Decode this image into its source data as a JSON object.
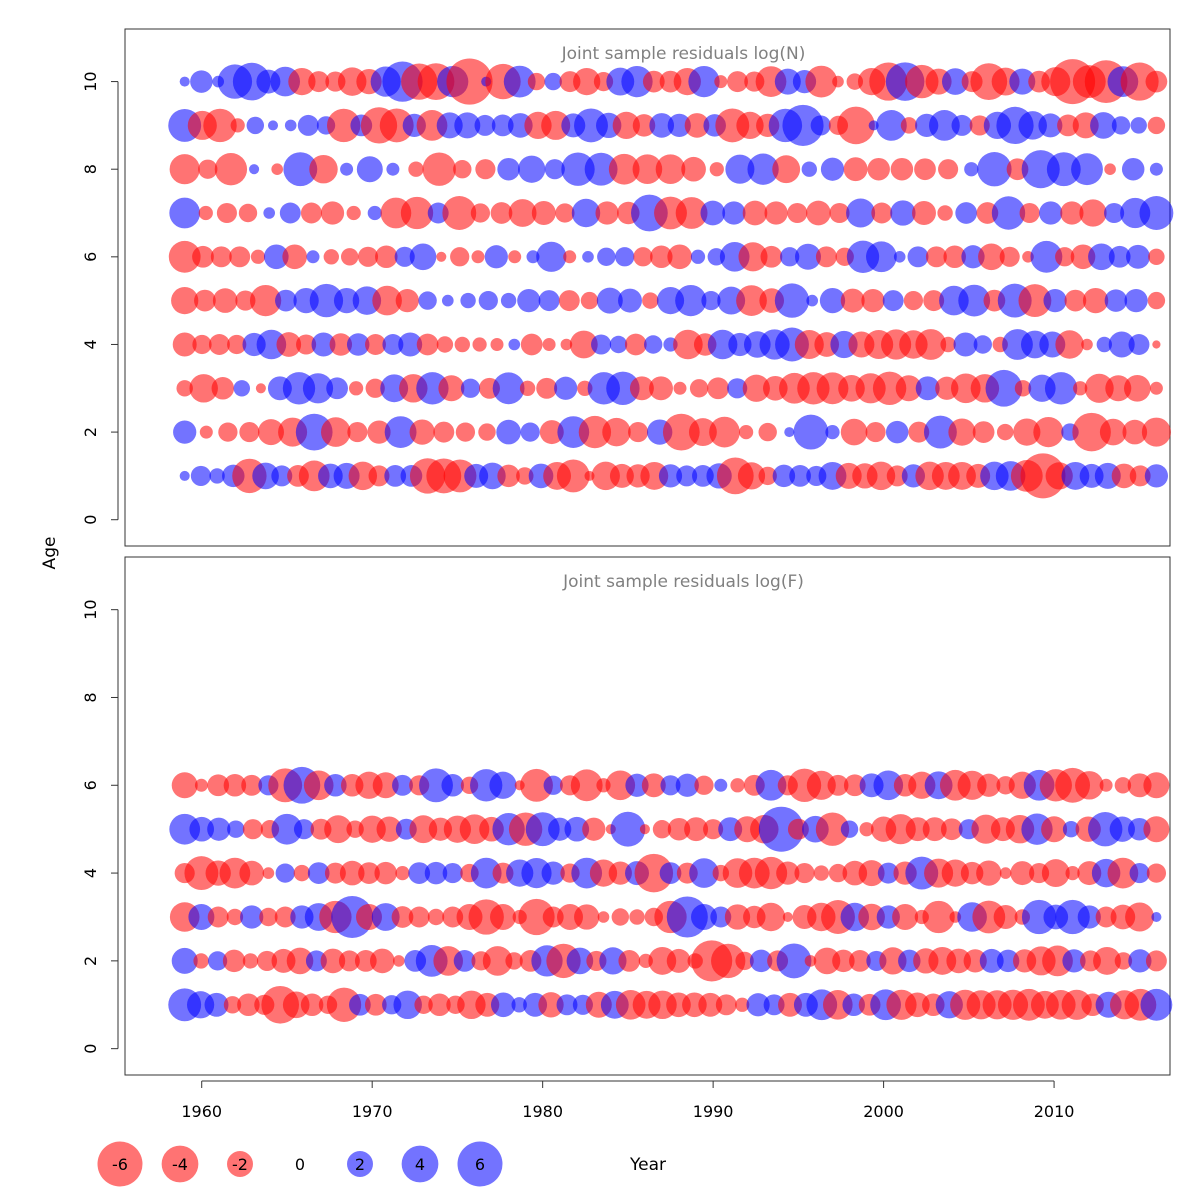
{
  "chart_data": {
    "type": "scatter",
    "encoding": "bubble",
    "xlabel": "Year",
    "ylabel": "Age",
    "xlim": [
      1955.5,
      2016.8
    ],
    "x_ticks": [
      1960,
      1970,
      1980,
      1990,
      2000,
      2010
    ],
    "ylim": [
      -0.6,
      11.2
    ],
    "y_ticks": [
      0,
      2,
      4,
      6,
      8,
      10
    ],
    "grid": false,
    "colors": {
      "positive": "#0000ff",
      "negative": "#ff0000",
      "alpha": 0.55
    },
    "legend": {
      "placement": "bottom-left",
      "entries": [
        {
          "label": "-6",
          "value": -6
        },
        {
          "label": "-4",
          "value": -4
        },
        {
          "label": "-2",
          "value": -2
        },
        {
          "label": "0",
          "value": 0
        },
        {
          "label": "2",
          "value": 2
        },
        {
          "label": "4",
          "value": 4
        },
        {
          "label": "6",
          "value": 6
        }
      ]
    },
    "panels": [
      {
        "title": "Joint sample residuals log(N)",
        "years": [
          1959,
          2016
        ],
        "ages": [
          1,
          10
        ],
        "residuals": {
          "10": [
            0.3,
            1.5,
            0.4,
            3.5,
            4.2,
            1.7,
            2.6,
            -2.2,
            -1.3,
            -1.2,
            -2.4,
            -1.9,
            2.7,
            4.8,
            -3.9,
            -4.0,
            2.9,
            -6.3,
            0.3,
            -3.7,
            3.0,
            -0.9,
            0.9,
            -1.3,
            -2.2,
            -1.1,
            2.3,
            2.9,
            -1.4,
            -1.4,
            -2.2,
            2.9,
            -0.5,
            -1.3,
            -1.2,
            -2.8,
            2.0,
            1.6,
            -3.0,
            -0.4,
            -0.8,
            -2.2,
            -4.3,
            4.4,
            -3.3,
            -2.0,
            2.1,
            -1.3,
            -4.0,
            -2.3,
            2.0,
            -1.4,
            -2.5,
            -6.0,
            -3.2,
            -5.4,
            2.8,
            -4.3,
            -1.4
          ],
          "9": [
            3.2,
            -2.5,
            -3.3,
            -0.6,
            0.9,
            0.3,
            0.4,
            1.3,
            1.0,
            -3.3,
            1.4,
            -3.9,
            -3.4,
            1.6,
            -2.8,
            2.0,
            2.0,
            1.3,
            1.4,
            1.8,
            -2.2,
            -2.5,
            1.7,
            3.4,
            1.9,
            -2.2,
            -1.5,
            1.8,
            1.6,
            -1.8,
            1.5,
            -3.4,
            -2.2,
            -1.6,
            3.3,
            5.0,
            1.2,
            -1.1,
            -4.2,
            0.3,
            2.8,
            -0.8,
            1.6,
            2.8,
            1.3,
            -1.2,
            2.2,
            4.1,
            2.4,
            1.7,
            -1.4,
            -2.0,
            2.1,
            1.0,
            0.8,
            -0.9
          ],
          "8": [
            -2.7,
            -1.1,
            -3.1,
            0.3,
            -0.4,
            3.4,
            -2.4,
            0.5,
            2.0,
            0.5,
            -0.7,
            -3.3,
            -1.0,
            -1.2,
            1.5,
            2.2,
            1.2,
            3.3,
            3.2,
            -2.8,
            -2.6,
            -2.6,
            -1.8,
            -0.6,
            2.5,
            2.9,
            -2.3,
            0.7,
            1.6,
            -1.7,
            -1.5,
            -1.5,
            -1.4,
            -1.2,
            0.6,
            3.5,
            -1.4,
            4.3,
            3.4,
            3.0,
            -0.4,
            1.5,
            0.5
          ],
          "7": [
            2.8,
            -0.6,
            -1.2,
            -1.0,
            0.4,
            1.3,
            -1.3,
            -1.6,
            -0.6,
            0.6,
            -2.8,
            -3.1,
            1.3,
            -3.4,
            -1.1,
            -1.4,
            -2.3,
            -1.7,
            -1.1,
            2.4,
            -1.6,
            -1.5,
            4.0,
            -3.2,
            -3.0,
            1.8,
            1.6,
            -1.8,
            -1.6,
            -1.2,
            -1.8,
            -1.2,
            2.5,
            -1.3,
            1.9,
            -1.7,
            -0.7,
            1.4,
            -1.4,
            3.3,
            -1.2,
            1.6,
            -1.6,
            -2.2,
            1.2,
            2.7,
            3.4
          ],
          "6": [
            -3.0,
            -1.4,
            -1.3,
            -1.3,
            -0.6,
            1.8,
            -1.8,
            0.5,
            -0.7,
            -0.9,
            -1.2,
            -1.5,
            1.2,
            2.1,
            -0.3,
            -1.1,
            -0.5,
            1.6,
            -0.5,
            0.5,
            2.7,
            -0.5,
            0.4,
            1.0,
            1.1,
            -1.1,
            -1.5,
            -1.8,
            0.6,
            0.9,
            2.6,
            -2.5,
            -1.4,
            1.1,
            2.0,
            -1.3,
            -1.0,
            3.1,
            2.8,
            0.4,
            1.3,
            -1.3,
            -1.5,
            1.6,
            -2.1,
            -1.2,
            -0.4,
            3.0,
            -1.1,
            -1.8,
            2.1,
            1.4,
            1.7,
            -0.8
          ],
          "5": [
            -2.2,
            -1.4,
            -1.8,
            -1.2,
            -2.9,
            1.4,
            1.9,
            3.3,
            1.9,
            2.4,
            -2.6,
            -1.6,
            1.0,
            0.4,
            0.7,
            1.1,
            0.7,
            1.6,
            1.3,
            -1.3,
            -0.9,
            2.0,
            1.7,
            -0.8,
            2.2,
            2.9,
            1.1,
            2.3,
            -2.8,
            -1.8,
            3.5,
            0.4,
            1.9,
            -1.7,
            -1.6,
            1.3,
            -1.1,
            -1.3,
            2.6,
            3.0,
            -1.4,
            3.4,
            -3.2,
            1.6,
            -1.4,
            -1.9,
            1.5,
            1.6,
            -0.9
          ],
          "4": [
            -1.7,
            -1.1,
            -1.3,
            -1.1,
            1.6,
            2.6,
            -1.8,
            -1.2,
            1.7,
            -1.5,
            1.5,
            -1.3,
            1.3,
            1.7,
            -1.4,
            -0.8,
            -0.7,
            -0.6,
            -0.5,
            0.4,
            -1.4,
            -0.5,
            -0.4,
            -2.3,
            1.2,
            0.9,
            -1.4,
            1.0,
            0.6,
            -2.6,
            -1.5,
            2.6,
            1.6,
            2.1,
            2.7,
            3.4,
            -2.5,
            -1.8,
            2.2,
            -2.0,
            -2.5,
            -2.7,
            -2.4,
            -2.8,
            -0.7,
            1.7,
            1.0,
            -0.7,
            2.8,
            2.3,
            2.0,
            -2.4,
            -0.4,
            0.7,
            2.0,
            1.3,
            -0.2
          ],
          "3": [
            -0.8,
            -2.4,
            -1.5,
            0.8,
            -0.3,
            1.7,
            3.1,
            2.7,
            1.4,
            -0.6,
            -1.1,
            2.3,
            -2.4,
            3.1,
            -2.0,
            1.1,
            -1.3,
            3.0,
            -0.7,
            -1.3,
            1.6,
            -0.7,
            3.1,
            3.3,
            -1.7,
            -1.7,
            -0.5,
            -1.0,
            -1.4,
            1.2,
            -2.2,
            -1.8,
            -2.8,
            -3.1,
            -3.0,
            -2.1,
            -2.7,
            -3.3,
            -2.0,
            1.7,
            -1.6,
            -2.6,
            -2.4,
            4.0,
            -0.8,
            2.2,
            3.1,
            -0.6,
            -2.5,
            -2.0,
            -2.1,
            -0.5
          ],
          "2": [
            1.6,
            -0.5,
            -1.1,
            -1.2,
            -2.0,
            -2.5,
            4.0,
            -2.6,
            -1.2,
            -1.6,
            3.0,
            -1.9,
            -1.3,
            -1.1,
            -0.9,
            1.8,
            1.1,
            -1.7,
            3.0,
            -3.1,
            -2.4,
            -1.2,
            1.9,
            -4.0,
            -2.3,
            -2.8,
            -0.6,
            -1.0,
            0.3,
            3.6,
            0.6,
            -2.1,
            -1.2,
            1.5,
            -1.3,
            3.2,
            -2.2,
            -1.4,
            -0.8,
            -2.2,
            -2.7,
            0.9,
            -4.4,
            -2.1,
            -1.8,
            -2.5
          ],
          "1": [
            0.3,
            1.2,
            0.7,
            1.5,
            -3.5,
            2.1,
            1.3,
            -1.4,
            -2.8,
            1.8,
            2.0,
            -2.4,
            -1.3,
            1.4,
            1.4,
            -3.7,
            -3.6,
            -3.2,
            1.7,
            2.1,
            -1.5,
            -0.9,
            1.8,
            -2.3,
            -3.2,
            -0.3,
            -2.4,
            -1.7,
            -1.6,
            -2.3,
            1.6,
            1.3,
            1.4,
            1.9,
            -4.0,
            -2.2,
            -1.0,
            1.5,
            1.4,
            1.2,
            2.3,
            -2.0,
            -1.9,
            -2.4,
            -1.3,
            1.6,
            -2.4,
            -2.3,
            -2.3,
            -1.7,
            2.4,
            2.6,
            -3.0,
            -6.0,
            -2.2,
            2.3,
            1.7,
            2.0,
            -1.8,
            -1.3,
            1.6
          ]
        }
      },
      {
        "title": "Joint sample residuals log(F)",
        "years": [
          1959,
          2016
        ],
        "ages": [
          1,
          6
        ],
        "residuals": {
          "6": [
            -2.0,
            -0.5,
            -1.4,
            -1.5,
            -1.3,
            1.2,
            -3.4,
            4.0,
            -2.6,
            1.5,
            -1.5,
            -2.2,
            -2.0,
            1.3,
            -1.2,
            3.4,
            1.5,
            -0.9,
            3.1,
            2.2,
            -0.3,
            -3.2,
            1.1,
            -1.2,
            -3.0,
            -0.6,
            -2.6,
            1.6,
            -1.7,
            1.2,
            1.6,
            -1.1,
            0.5,
            -0.6,
            -1.3,
            2.8,
            -1.2,
            -3.3,
            -2.5,
            -1.3,
            -1.4,
            1.7,
            2.6,
            -1.5,
            -2.2,
            2.3,
            -2.8,
            -2.5,
            -1.6,
            -1.0,
            -2.2,
            2.8,
            -3.1,
            -3.6,
            -2.4,
            -0.5,
            -0.8,
            -1.7,
            -2.0
          ],
          "5": [
            2.8,
            1.8,
            1.6,
            0.9,
            -1.2,
            -1.0,
            2.8,
            1.2,
            -1.3,
            -2.3,
            -0.9,
            -2.2,
            -1.9,
            1.3,
            -2.3,
            -1.6,
            -2.2,
            -2.6,
            -1.8,
            3.1,
            -3.3,
            3.4,
            1.6,
            1.8,
            -1.6,
            -0.3,
            3.6,
            -0.3,
            -1.0,
            -1.5,
            -1.7,
            -1.2,
            1.7,
            -2.0,
            -2.4,
            6.0,
            -1.3,
            2.1,
            -3.3,
            0.9,
            -0.6,
            -1.9,
            -2.7,
            -1.7,
            -1.7,
            -1.4,
            1.2,
            -2.5,
            -1.7,
            -2.4,
            2.9,
            -2.0,
            0.8,
            -1.9,
            3.5,
            1.9,
            1.5,
            -2.0
          ],
          "4": [
            -1.2,
            -3.4,
            -1.9,
            -2.8,
            -1.8,
            -0.4,
            1.1,
            -0.8,
            1.4,
            -1.3,
            -1.8,
            -1.4,
            -1.5,
            -0.6,
            1.4,
            1.5,
            1.2,
            -1.0,
            2.8,
            -1.3,
            2.2,
            2.7,
            1.6,
            -1.1,
            2.8,
            -2.2,
            -1.6,
            1.7,
            -4.4,
            1.4,
            -1.3,
            2.6,
            -0.8,
            -2.6,
            -2.8,
            -3.1,
            -1.6,
            -1.2,
            -0.7,
            -1.0,
            -1.8,
            -2.0,
            1.3,
            -1.6,
            3.2,
            -2.5,
            -2.2,
            -1.5,
            -1.9,
            -0.4,
            -1.7,
            -1.2,
            -2.3,
            -0.6,
            -1.7,
            2.4,
            -2.8,
            1.2,
            -1.1
          ],
          "3": [
            -2.6,
            2.0,
            -1.3,
            -0.8,
            1.6,
            -1.0,
            -1.3,
            1.6,
            2.3,
            -3.1,
            5.2,
            -2.0,
            2.3,
            -1.4,
            -1.3,
            -0.8,
            -1.3,
            -2.0,
            -3.7,
            -2.0,
            -0.6,
            -3.9,
            -1.3,
            -2.0,
            -1.9,
            -0.4,
            -0.9,
            -0.7,
            -1.0,
            -3.1,
            5.0,
            2.0,
            1.3,
            -1.9,
            -1.5,
            -2.4,
            -0.3,
            -1.7,
            -2.4,
            -3.4,
            2.4,
            -2.1,
            1.6,
            -2.0,
            -0.6,
            -3.1,
            -0.4,
            2.6,
            -3.2,
            -1.7,
            -0.7,
            3.5,
            1.8,
            3.5,
            1.6,
            -1.3,
            -1.8,
            -2.5,
            0.3
          ],
          "2": [
            2.0,
            -0.7,
            1.1,
            -1.5,
            -0.7,
            -1.2,
            -1.7,
            -2.1,
            1.3,
            -1.8,
            -1.3,
            -1.4,
            -1.8,
            -0.4,
            1.4,
            3.0,
            -2.6,
            1.4,
            -1.1,
            -2.6,
            -0.9,
            -1.4,
            2.9,
            -3.5,
            2.1,
            -1.2,
            2.2,
            -1.4,
            -0.6,
            -2.3,
            -1.7,
            -0.7,
            -5.0,
            -3.5,
            -1.0,
            1.5,
            -1.3,
            3.6,
            -0.4,
            -2.1,
            -1.5,
            -1.4,
            1.2,
            -2.2,
            1.5,
            -1.9,
            -2.3,
            -1.8,
            -1.6,
            1.7,
            1.5,
            -1.6,
            -2.5,
            -2.8,
            1.6,
            -1.3,
            -2.3,
            -0.9,
            1.6,
            -1.3
          ],
          "1": [
            3.2,
            2.2,
            1.7,
            -0.9,
            -1.5,
            -1.2,
            -4.2,
            -2.1,
            -1.5,
            -1.0,
            -3.5,
            1.4,
            -1.4,
            1.1,
            2.4,
            -1.0,
            -1.5,
            -1.0,
            -2.4,
            -1.7,
            1.8,
            0.7,
            1.7,
            -1.9,
            1.3,
            1.2,
            -2.0,
            2.3,
            -2.6,
            -2.3,
            -2.4,
            -1.8,
            -1.8,
            -1.7,
            -1.3,
            -0.6,
            1.6,
            1.3,
            -1.7,
            1.7,
            2.8,
            -2.6,
            1.5,
            -1.4,
            2.8,
            -2.7,
            -1.8,
            -1.5,
            2.2,
            -2.7,
            -2.5,
            -2.5,
            -2.7,
            -3.0,
            -2.3,
            -2.6,
            -2.7,
            -1.5,
            2.0,
            -2.5,
            -3.0,
            3.0
          ]
        }
      }
    ]
  }
}
